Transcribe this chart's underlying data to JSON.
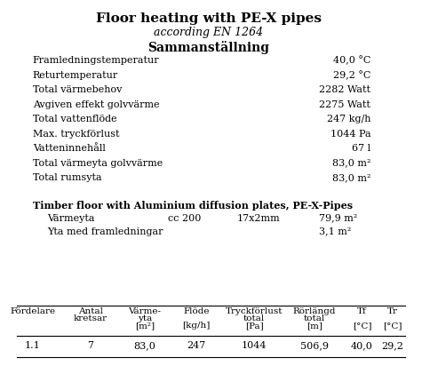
{
  "title": "Floor heating with PE-X pipes",
  "subtitle": "according EN 1264",
  "section_title": "Sammanställning",
  "spec_rows": [
    [
      "Framledningstemperatur",
      "40,0 °C"
    ],
    [
      "Returtemperatur",
      "29,2 °C"
    ],
    [
      "Total värmebehov",
      "2282 Watt"
    ],
    [
      "Avgiven effekt golvvärme",
      "2275 Watt"
    ],
    [
      "Total vattenflöde",
      "247 kg/h"
    ],
    [
      "Max. tryckförlust",
      "1044 Pa"
    ],
    [
      "Vatteninnehåll",
      "67 l"
    ],
    [
      "Total värmeyta golvvärme",
      "83,0 m²"
    ],
    [
      "Total rumsyta",
      "83,0 m²"
    ]
  ],
  "floor_type_title": "Timber floor with Aluminium diffusion plates, PE-X-Pipes",
  "floor_rows": [
    [
      "Värmeyta",
      "cc 200",
      "17x2mm",
      "79,9 m²"
    ],
    [
      "Yta med framledningar",
      "",
      "",
      "3,1 m²"
    ]
  ],
  "table_headers": [
    "Fördelare",
    "Antal\nkretsar",
    "Värme-\nyta\n[m²]",
    "Flöde\n\n[kg/h]",
    "Tryckförlust\ntotal\n[Pa]",
    "Rörlängd\ntotal\n[m]",
    "Tf\n\n[°C]",
    "Tr\n\n[°C]"
  ],
  "table_data": [
    "1.1",
    "7",
    "83,0",
    "247",
    "1044",
    "506,9",
    "40,0",
    "29,2"
  ],
  "bg_color": "#ffffff",
  "text_color": "#000000",
  "font_size_title": 11,
  "font_size_subtitle": 9,
  "font_size_section": 10,
  "font_size_body": 8,
  "font_size_small": 7.5
}
